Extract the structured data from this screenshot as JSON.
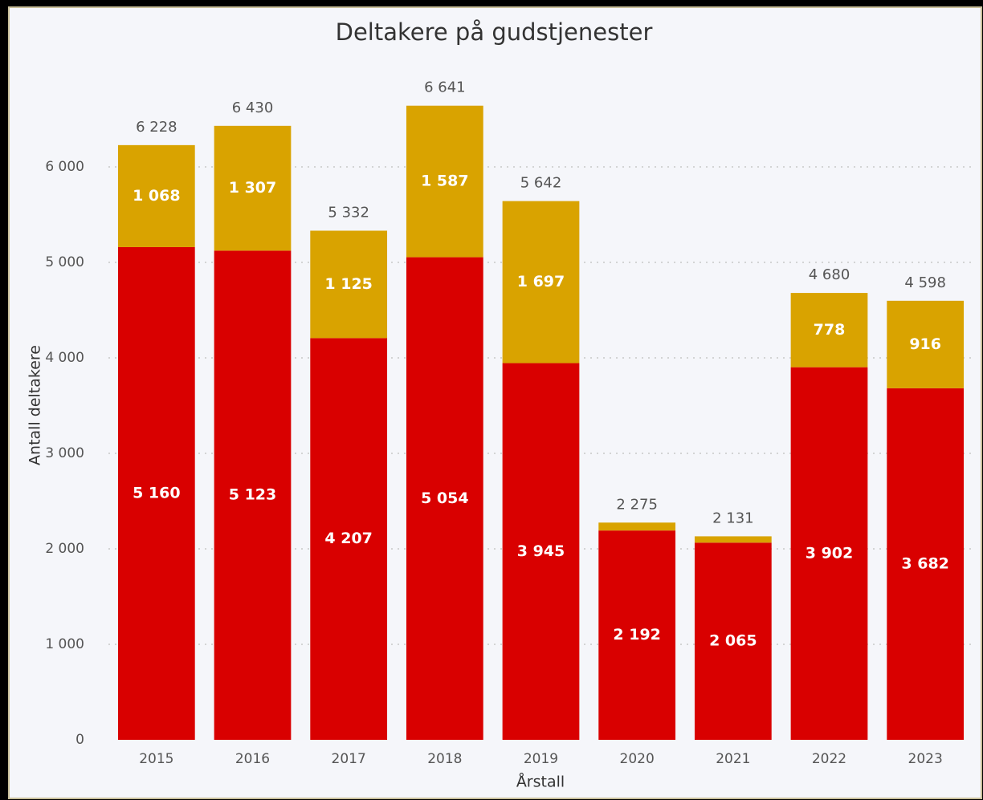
{
  "chart_data": {
    "type": "stacked_bar",
    "title": "Deltakere på gudstjenester",
    "x_label": "Årstall",
    "y_label": "Antall deltakere",
    "categories": [
      "2015",
      "2016",
      "2017",
      "2018",
      "2019",
      "2020",
      "2021",
      "2022",
      "2023"
    ],
    "series": [
      {
        "name": null,
        "color": "#d90000",
        "values": [
          5160,
          5123,
          4207,
          5054,
          3945,
          2192,
          2065,
          3902,
          3682
        ],
        "value_labels": [
          "5 160",
          "5 123",
          "4 207",
          "5 054",
          "3 945",
          "2 192",
          "2 065",
          "3 902",
          "3 682"
        ]
      },
      {
        "name": null,
        "color": "#d9a300",
        "values": [
          1068,
          1307,
          1125,
          1587,
          1697,
          83,
          66,
          778,
          916
        ],
        "value_labels": [
          "1 068",
          "1 307",
          "1 125",
          "1 587",
          "1 697",
          null,
          null,
          "778",
          "916"
        ]
      }
    ],
    "totals": [
      6228,
      6430,
      5332,
      6641,
      5642,
      2275,
      2131,
      4680,
      4598
    ],
    "total_labels": [
      "6 228",
      "6 430",
      "5 332",
      "6 641",
      "5 642",
      "2 275",
      "2 131",
      "4 680",
      "4 598"
    ],
    "ylim": [
      0,
      7000
    ],
    "yticks": [
      0,
      {
        "value": 1000,
        "label": "1 000"
      },
      {
        "value": 2000,
        "label": "2 000"
      },
      {
        "value": 3000,
        "label": "3 000"
      },
      {
        "value": 4000,
        "label": "4 000"
      },
      {
        "value": 5000,
        "label": "5 000"
      },
      {
        "value": 6000,
        "label": "6 000"
      }
    ],
    "grid": true
  }
}
